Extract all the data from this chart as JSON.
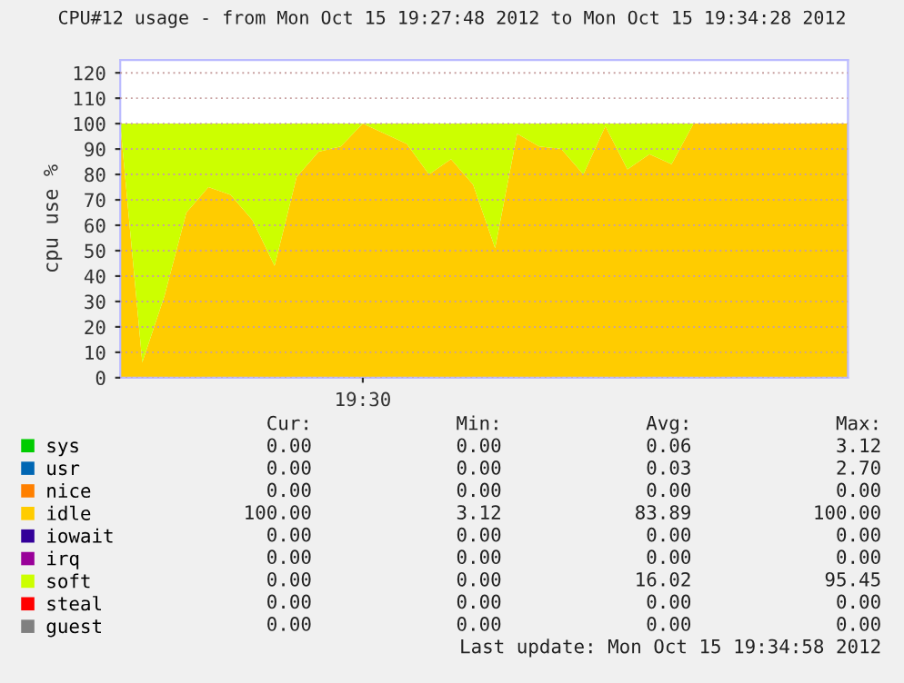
{
  "chart_data": {
    "type": "area",
    "stacked": true,
    "title": "CPU#12 usage - from Mon Oct 15 19:27:48 2012 to Mon Oct 15 19:34:28 2012",
    "ylabel": "cpu use %",
    "categories": [
      null,
      null,
      null,
      null,
      null,
      null,
      null,
      null,
      null,
      null,
      null,
      "19:30",
      null,
      null,
      null,
      null,
      null,
      null,
      null,
      null,
      null,
      null,
      null,
      null,
      null,
      null,
      null,
      null,
      null,
      null,
      null,
      null,
      null,
      null
    ],
    "series": [
      {
        "name": "sys",
        "color": "#00cc00",
        "values": [
          null,
          null,
          null,
          null,
          null,
          null,
          null,
          null,
          null,
          null,
          null,
          null,
          null,
          null,
          null,
          null,
          null,
          null,
          null,
          null,
          null,
          null,
          null,
          null,
          null,
          null,
          null,
          null,
          null,
          null,
          null,
          null,
          null,
          null
        ]
      },
      {
        "name": "usr",
        "color": "#0066b3",
        "values": [
          null,
          null,
          null,
          null,
          null,
          null,
          null,
          null,
          null,
          null,
          null,
          null,
          null,
          null,
          null,
          null,
          null,
          null,
          null,
          null,
          null,
          null,
          null,
          null,
          null,
          null,
          null,
          null,
          null,
          null,
          null,
          null,
          null,
          null
        ]
      },
      {
        "name": "nice",
        "color": "#ff8000",
        "values": [
          null,
          null,
          null,
          null,
          null,
          null,
          null,
          null,
          null,
          null,
          null,
          null,
          null,
          null,
          null,
          null,
          null,
          null,
          null,
          null,
          null,
          null,
          null,
          null,
          null,
          null,
          null,
          null,
          null,
          null,
          null,
          null,
          null,
          null
        ]
      },
      {
        "name": "idle",
        "color": "#ffcc00",
        "values": [
          100,
          6,
          32,
          65,
          75,
          72,
          62,
          44,
          79,
          89,
          91,
          100,
          96,
          92,
          80,
          86,
          76,
          51,
          96,
          91,
          90,
          80,
          99,
          82,
          88,
          84,
          100,
          100,
          100,
          100,
          100,
          100,
          100,
          100
        ]
      },
      {
        "name": "iowait",
        "color": "#330099",
        "values": [
          null,
          null,
          null,
          null,
          null,
          null,
          null,
          null,
          null,
          null,
          null,
          null,
          null,
          null,
          null,
          null,
          null,
          null,
          null,
          null,
          null,
          null,
          null,
          null,
          null,
          null,
          null,
          null,
          null,
          null,
          null,
          null,
          null,
          null
        ]
      },
      {
        "name": "irq",
        "color": "#990099",
        "values": [
          null,
          null,
          null,
          null,
          null,
          null,
          null,
          null,
          null,
          null,
          null,
          null,
          null,
          null,
          null,
          null,
          null,
          null,
          null,
          null,
          null,
          null,
          null,
          null,
          null,
          null,
          null,
          null,
          null,
          null,
          null,
          null,
          null,
          null
        ]
      },
      {
        "name": "soft",
        "color": "#ccff00",
        "values": [
          0,
          94,
          68,
          35,
          25,
          28,
          38,
          56,
          21,
          11,
          9,
          0,
          4,
          8,
          20,
          14,
          24,
          49,
          4,
          9,
          10,
          20,
          1,
          18,
          12,
          16,
          0,
          0,
          0,
          0,
          0,
          0,
          0,
          0
        ]
      },
      {
        "name": "steal",
        "color": "#ff0000",
        "values": [
          null,
          null,
          null,
          null,
          null,
          null,
          null,
          null,
          null,
          null,
          null,
          null,
          null,
          null,
          null,
          null,
          null,
          null,
          null,
          null,
          null,
          null,
          null,
          null,
          null,
          null,
          null,
          null,
          null,
          null,
          null,
          null,
          null,
          null
        ]
      },
      {
        "name": "guest",
        "color": "#808080",
        "values": [
          null,
          null,
          null,
          null,
          null,
          null,
          null,
          null,
          null,
          null,
          null,
          null,
          null,
          null,
          null,
          null,
          null,
          null,
          null,
          null,
          null,
          null,
          null,
          null,
          null,
          null,
          null,
          null,
          null,
          null,
          null,
          null,
          null,
          null
        ]
      }
    ],
    "ylim": [
      0,
      125
    ],
    "yticks": [
      0,
      10,
      20,
      30,
      40,
      50,
      60,
      70,
      80,
      90,
      100,
      110,
      120
    ],
    "grid": "y",
    "legend": "bottom",
    "annotations": [
      "Cur:",
      "Min:",
      "Avg:",
      "Max:",
      "0.00",
      "0.00",
      "0.06",
      "3.12",
      "0.00",
      "0.00",
      "0.03",
      "2.70",
      "0.00",
      "0.00",
      "0.00",
      "0.00",
      "100.00",
      "3.12",
      "83.89",
      "100.00",
      "0.00",
      "0.00",
      "0.00",
      "0.00",
      "0.00",
      "0.00",
      "0.00",
      "0.00",
      "0.00",
      "0.00",
      "16.02",
      "95.45",
      "0.00",
      "0.00",
      "0.00",
      "0.00",
      "0.00",
      "0.00",
      "0.00",
      "0.00",
      "Last update: Mon Oct 15 19:34:58 2012"
    ]
  }
}
